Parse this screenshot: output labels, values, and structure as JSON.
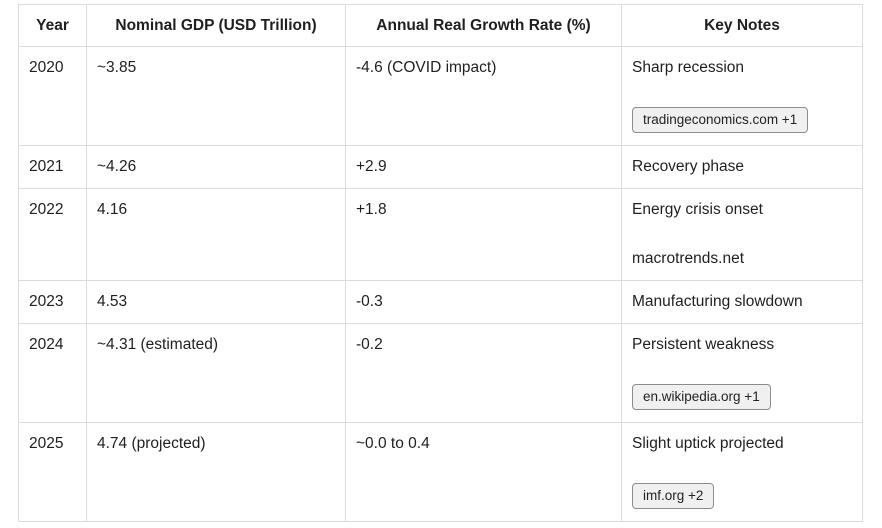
{
  "table": {
    "columns": [
      {
        "key": "year",
        "label": "Year"
      },
      {
        "key": "gdp",
        "label": "Nominal GDP (USD Trillion)"
      },
      {
        "key": "growth",
        "label": "Annual Real Growth Rate (%)"
      },
      {
        "key": "notes",
        "label": "Key Notes"
      }
    ],
    "rows": [
      {
        "year": "2020",
        "gdp": "~3.85",
        "growth": "-4.6 (COVID impact)",
        "note": "Sharp recession",
        "citation": {
          "label": "tradingeconomics.com +1",
          "style": "badge"
        }
      },
      {
        "year": "2021",
        "gdp": "~4.26",
        "growth": "+2.9",
        "note": "Recovery phase",
        "citation": null
      },
      {
        "year": "2022",
        "gdp": "4.16",
        "growth": "+1.8",
        "note": "Energy crisis onset",
        "citation": {
          "label": "macrotrends.net",
          "style": "text"
        }
      },
      {
        "year": "2023",
        "gdp": "4.53",
        "growth": "-0.3",
        "note": "Manufacturing slowdown",
        "citation": null
      },
      {
        "year": "2024",
        "gdp": "~4.31 (estimated)",
        "growth": "-0.2",
        "note": "Persistent weakness",
        "citation": {
          "label": "en.wikipedia.org +1",
          "style": "badge"
        }
      },
      {
        "year": "2025",
        "gdp": "4.74 (projected)",
        "growth": "~0.0 to 0.4",
        "note": "Slight uptick projected",
        "citation": {
          "label": "imf.org +2",
          "style": "badge"
        }
      }
    ]
  },
  "colors": {
    "text": "#1f1f1f",
    "table_border": "#dcdcdc",
    "badge_background": "#f0f0f0",
    "badge_border": "#8c8c8c"
  }
}
